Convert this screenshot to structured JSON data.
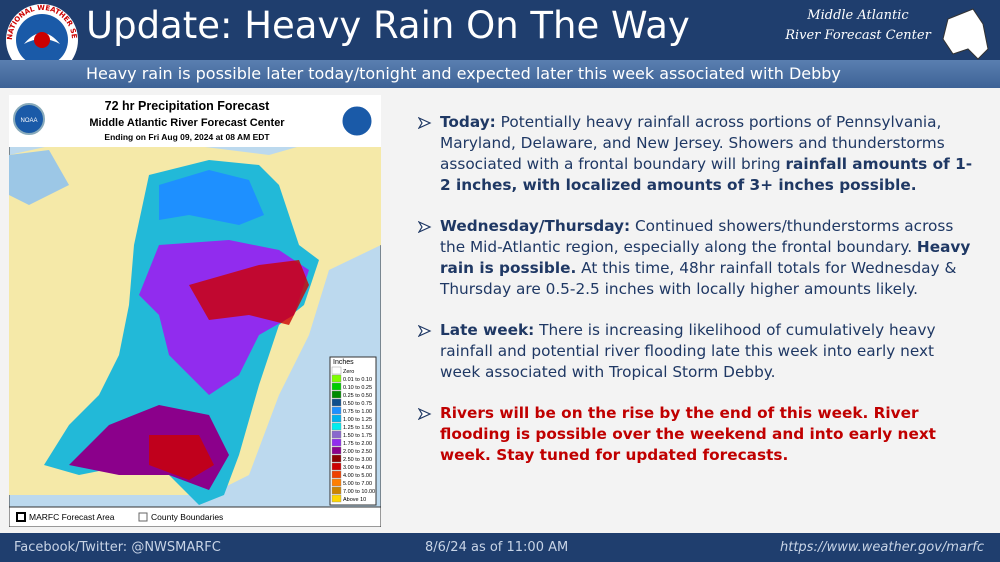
{
  "header": {
    "title": "Update: Heavy Rain On The Way",
    "subtitle": "Heavy rain is possible later today/tonight and expected later this week associated with Debby",
    "logo_text": "NATIONAL WEATHER SERVICE",
    "org_line1": "Middle Atlantic",
    "org_line2": "River Forecast Center"
  },
  "map": {
    "title": "72 hr Precipitation Forecast",
    "subtitle": "Middle Atlantic River Forecast Center",
    "valid": "Ending on Fri Aug 09, 2024 at 08 AM EDT",
    "noaa": "NOAA",
    "legend": {
      "title": "Inches",
      "items": [
        {
          "label": "Zero",
          "color": "#ffffff"
        },
        {
          "label": "0.01 to 0.10",
          "color": "#7fff00"
        },
        {
          "label": "0.10 to 0.25",
          "color": "#00cd00"
        },
        {
          "label": "0.25 to 0.50",
          "color": "#008b00"
        },
        {
          "label": "0.50 to 0.75",
          "color": "#104e8b"
        },
        {
          "label": "0.75 to 1.00",
          "color": "#1e90ff"
        },
        {
          "label": "1.00 to 1.25",
          "color": "#00b2ee"
        },
        {
          "label": "1.25 to 1.50",
          "color": "#00eeee"
        },
        {
          "label": "1.50 to 1.75",
          "color": "#8968cd"
        },
        {
          "label": "1.75 to 2.00",
          "color": "#912cee"
        },
        {
          "label": "2.00 to 2.50",
          "color": "#8b008b"
        },
        {
          "label": "2.50 to 3.00",
          "color": "#8b0000"
        },
        {
          "label": "3.00 to 4.00",
          "color": "#cd0000"
        },
        {
          "label": "4.00 to 5.00",
          "color": "#ee4000"
        },
        {
          "label": "5.00 to 7.00",
          "color": "#ff7f00"
        },
        {
          "label": "7.00 to 10.00",
          "color": "#cd8500"
        },
        {
          "label": "Above 10",
          "color": "#ffd700"
        }
      ]
    },
    "key": [
      "MARFC Forecast Area",
      "County Boundaries"
    ]
  },
  "bullets": [
    {
      "color": "#1f3864",
      "runs": [
        {
          "text": "Today:",
          "bold": true
        },
        {
          "text": " Potentially heavy rainfall across portions of Pennsylvania, Maryland, Delaware, and New Jersey. Showers and thunderstorms associated with a frontal boundary will bring ",
          "bold": false
        },
        {
          "text": "rainfall amounts of 1-2 inches, with localized amounts of 3+ inches possible.",
          "bold": true
        }
      ]
    },
    {
      "color": "#1f3864",
      "runs": [
        {
          "text": "Wednesday/Thursday:",
          "bold": true
        },
        {
          "text": " Continued showers/thunderstorms across the Mid-Atlantic region, especially along the frontal boundary. ",
          "bold": false
        },
        {
          "text": "Heavy rain is possible.",
          "bold": true
        },
        {
          "text": " At this time, 48hr rainfall totals for Wednesday & Thursday are 0.5-2.5 inches with locally higher amounts likely.",
          "bold": false
        }
      ]
    },
    {
      "color": "#1f3864",
      "runs": [
        {
          "text": "Late week:",
          "bold": true
        },
        {
          "text": " There is increasing likelihood of cumulatively heavy rainfall and potential river flooding late this week into early next week associated with Tropical Storm Debby.",
          "bold": false
        }
      ]
    },
    {
      "color": "#c00000",
      "runs": [
        {
          "text": "Rivers will be on the rise by the end of this week. River flooding is possible over the weekend and into early next week. Stay tuned for updated forecasts.",
          "bold": true
        }
      ]
    }
  ],
  "footer": {
    "left": "Facebook/Twitter: @NWSMARFC",
    "center": "8/6/24 as of 11:00 AM",
    "right": "https://www.weather.gov/marfc"
  }
}
